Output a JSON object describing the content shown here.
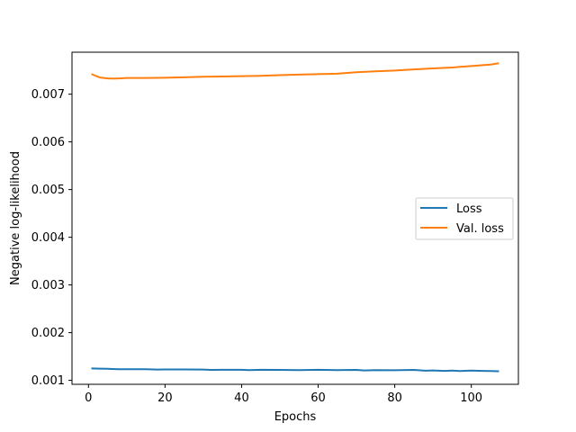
{
  "chart_data": {
    "type": "line",
    "title": "",
    "xlabel": "Epochs",
    "ylabel": "Negative log-likelihood",
    "xlim": [
      -4.3,
      112.3
    ],
    "ylim": [
      0.000917,
      0.00788
    ],
    "xticks": [
      0,
      20,
      40,
      60,
      80,
      100
    ],
    "xtick_labels": [
      "0",
      "20",
      "40",
      "60",
      "80",
      "100"
    ],
    "yticks": [
      0.001,
      0.002,
      0.003,
      0.004,
      0.005,
      0.006,
      0.007
    ],
    "ytick_labels": [
      "0.001",
      "0.002",
      "0.003",
      "0.004",
      "0.005",
      "0.006",
      "0.007"
    ],
    "grid": false,
    "legend_position": "center-right",
    "series": [
      {
        "name": "Loss",
        "color": "#1f77b4",
        "x": [
          1,
          3,
          5,
          8,
          10,
          15,
          18,
          20,
          25,
          30,
          32,
          35,
          40,
          42,
          45,
          50,
          55,
          60,
          65,
          70,
          72,
          75,
          80,
          85,
          88,
          90,
          93,
          95,
          97,
          100,
          103,
          105,
          107
        ],
        "y": [
          0.00125,
          0.001245,
          0.001242,
          0.001232,
          0.001232,
          0.001232,
          0.001225,
          0.001228,
          0.001228,
          0.001225,
          0.001218,
          0.001222,
          0.001222,
          0.001215,
          0.001222,
          0.001218,
          0.001215,
          0.001222,
          0.001215,
          0.001218,
          0.001208,
          0.001215,
          0.001212,
          0.001218,
          0.001202,
          0.001208,
          0.001198,
          0.001205,
          0.001195,
          0.001205,
          0.001198,
          0.001195,
          0.001192
        ]
      },
      {
        "name": "Val. loss",
        "color": "#ff7f0e",
        "x": [
          1,
          2,
          3,
          4,
          5,
          6,
          8,
          10,
          15,
          20,
          25,
          30,
          35,
          40,
          45,
          50,
          55,
          60,
          65,
          70,
          75,
          80,
          85,
          90,
          95,
          100,
          105,
          107
        ],
        "y": [
          0.007415,
          0.00738,
          0.00735,
          0.00734,
          0.00733,
          0.007328,
          0.00733,
          0.00734,
          0.00734,
          0.007345,
          0.007355,
          0.007365,
          0.00737,
          0.007378,
          0.007385,
          0.0074,
          0.00741,
          0.00742,
          0.00743,
          0.00746,
          0.00748,
          0.007495,
          0.00752,
          0.00754,
          0.00756,
          0.00759,
          0.00762,
          0.007645
        ]
      }
    ]
  }
}
